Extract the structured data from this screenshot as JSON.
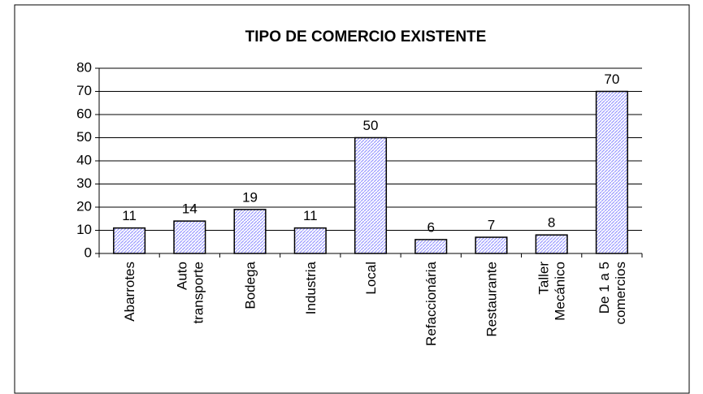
{
  "chart_data": {
    "type": "bar",
    "title": "TIPO DE COMERCIO EXISTENTE",
    "categories": [
      "Abarrotes",
      "Auto\ntransporte",
      "Bodega",
      "Industria",
      "Local",
      "Refaccionária",
      "Restaurante",
      "Taller\nMecánico",
      "De 1 a 5\ncomercios"
    ],
    "values": [
      11,
      14,
      19,
      11,
      50,
      6,
      7,
      8,
      70
    ],
    "color": "#9999ff",
    "ylim": [
      0,
      80
    ],
    "yticks": [
      0,
      10,
      20,
      30,
      40,
      50,
      60,
      70,
      80
    ],
    "grid": true
  }
}
